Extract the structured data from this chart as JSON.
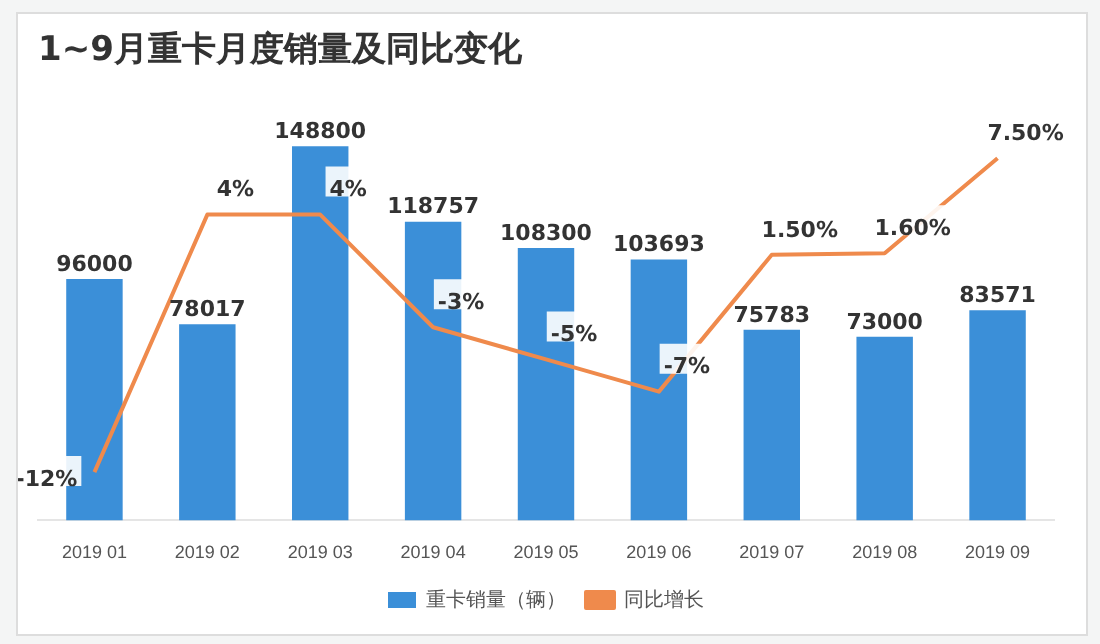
{
  "chart_data": {
    "type": "bar",
    "title": "1~9月重卡月度销量及同比变化",
    "categories": [
      "2019 01",
      "2019 02",
      "2019 03",
      "2019 04",
      "2019 05",
      "2019 06",
      "2019 07",
      "2019 08",
      "2019 09"
    ],
    "series": [
      {
        "name": "重卡销量（辆）",
        "color": "#3b8fd8",
        "values": [
          96000,
          78017,
          148800,
          118757,
          108300,
          103693,
          75783,
          73000,
          83571
        ],
        "value_labels": [
          "96000",
          "78017",
          "148800",
          "118757",
          "108300",
          "103693",
          "75783",
          "73000",
          "83571"
        ]
      },
      {
        "name": "同比增长",
        "type": "line",
        "axis": "y2",
        "color": "#ef8a4c",
        "values": [
          -12,
          4,
          4,
          -3,
          -5,
          -7,
          1.5,
          1.6,
          7.5
        ],
        "value_labels": [
          "-12%",
          "4%",
          "4%",
          "-3%",
          "-5%",
          "-7%",
          "1.50%",
          "1.60%",
          "7.50%"
        ]
      }
    ],
    "tick_labels": "x",
    "legend": "bottom",
    "grid": false,
    "marker": "none"
  }
}
